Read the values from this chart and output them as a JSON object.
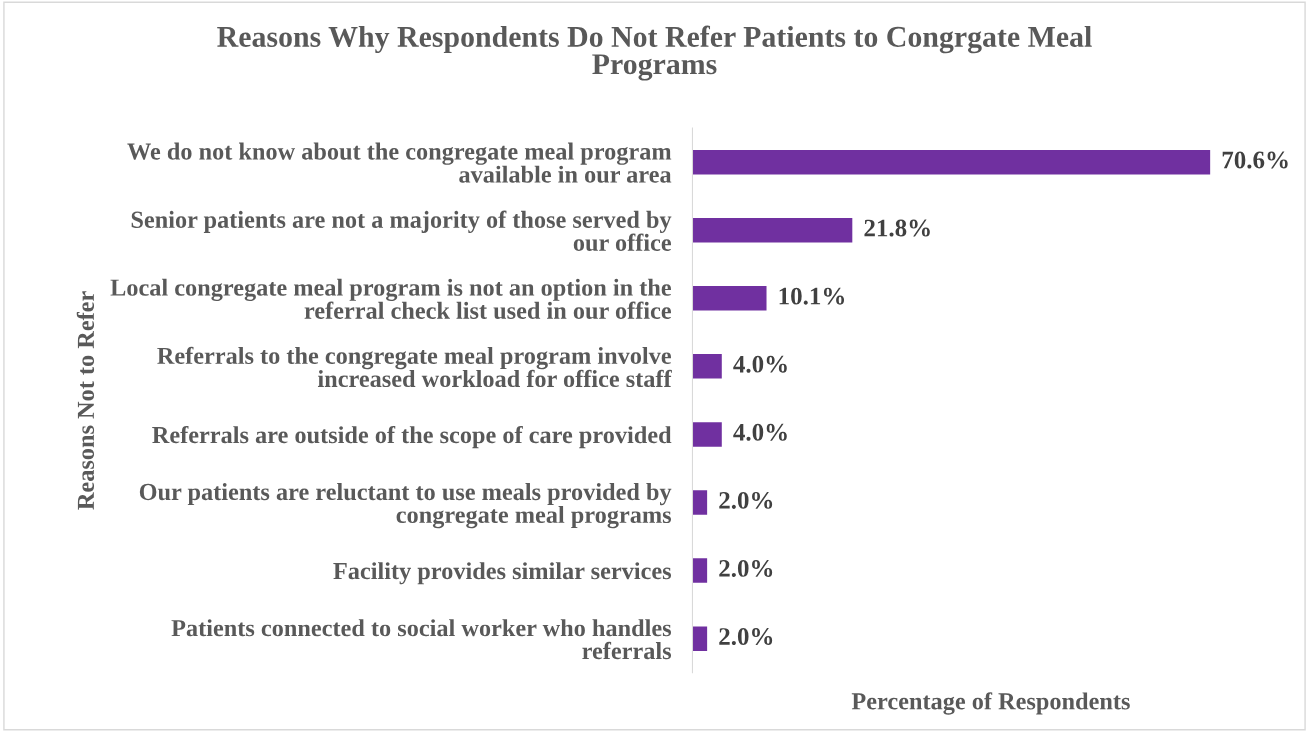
{
  "chart_data": {
    "type": "bar",
    "orientation": "horizontal",
    "title": "Reasons Why Respondents Do Not Refer Patients to Congrgate Meal\nPrograms",
    "xlabel": "Percentage of Respondents",
    "ylabel": "Reasons Not to Refer",
    "categories": [
      "We do not know about the congregate meal program\navailable in our area",
      "Senior patients are not a majority of those served by\nour office",
      "Local congregate meal program is not an option in the\nreferral check list used in our office",
      "Referrals to the congregate meal program involve\nincreased workload for office staff",
      "Referrals are outside of the scope of care provided",
      "Our patients are reluctant to use meals provided by\ncongregate meal programs",
      "Facility provides similar services",
      "Patients connected to social worker who handles\nreferrals"
    ],
    "values": [
      70.6,
      21.8,
      10.1,
      4.0,
      4.0,
      2.0,
      2.0,
      2.0
    ],
    "value_labels": [
      "70.6%",
      "21.8%",
      "10.1%",
      "4.0%",
      "4.0%",
      "2.0%",
      "2.0%",
      "2.0%"
    ],
    "color": "#7030a0",
    "grid": false,
    "legend": false
  }
}
